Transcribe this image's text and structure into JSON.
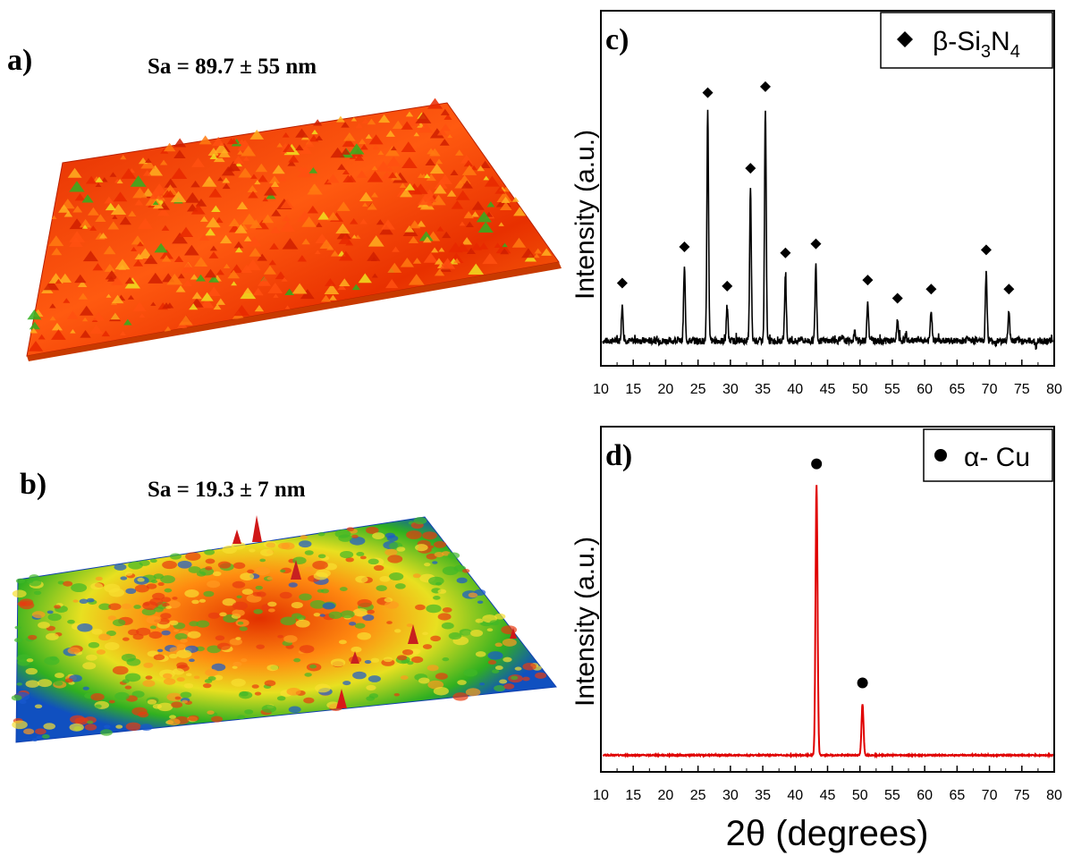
{
  "panels": {
    "a": {
      "label": "a)",
      "caption": "Sa = 89.7 ± 55 nm"
    },
    "b": {
      "label": "b)",
      "caption": "Sa = 19.3 ± 7 nm"
    }
  },
  "colors": {
    "xrd_c": "#000000",
    "xrd_d": "#e00000",
    "surface_high": "#d81a00",
    "surface_mid": "#f5e600",
    "surface_low": "#1aa000",
    "surface_min": "#0030c8"
  },
  "chart_data": [
    {
      "type": "line",
      "panel_label": "c)",
      "legend": {
        "marker": "diamond",
        "label_prefix": "β-Si",
        "sub1": "3",
        "label_mid": "N",
        "sub2": "4",
        "placement": "top-right"
      },
      "ylabel": "Intensity (a.u.)",
      "xlabel": "",
      "xlim": [
        10,
        80
      ],
      "ylim": [
        0,
        100
      ],
      "xticks": [
        "10",
        "15",
        "20",
        "25",
        "30",
        "35",
        "40",
        "45",
        "50",
        "55",
        "60",
        "65",
        "70",
        "75",
        "80"
      ],
      "baseline": 5,
      "peaks": [
        {
          "x": 13.3,
          "y": 17,
          "marked": true
        },
        {
          "x": 22.9,
          "y": 29,
          "marked": true
        },
        {
          "x": 26.5,
          "y": 80,
          "marked": true
        },
        {
          "x": 29.5,
          "y": 16,
          "marked": true
        },
        {
          "x": 33.1,
          "y": 55,
          "marked": true
        },
        {
          "x": 35.4,
          "y": 82,
          "marked": true
        },
        {
          "x": 38.5,
          "y": 27,
          "marked": true
        },
        {
          "x": 41.0,
          "y": 6,
          "marked": false
        },
        {
          "x": 43.2,
          "y": 30,
          "marked": true
        },
        {
          "x": 47.3,
          "y": 6,
          "marked": false
        },
        {
          "x": 49.2,
          "y": 8,
          "marked": false
        },
        {
          "x": 51.2,
          "y": 18,
          "marked": true
        },
        {
          "x": 53.0,
          "y": 5,
          "marked": false
        },
        {
          "x": 55.8,
          "y": 12,
          "marked": true
        },
        {
          "x": 57.1,
          "y": 7,
          "marked": false
        },
        {
          "x": 59.2,
          "y": 5,
          "marked": false
        },
        {
          "x": 61.0,
          "y": 15,
          "marked": true
        },
        {
          "x": 64.4,
          "y": 5,
          "marked": false
        },
        {
          "x": 66.6,
          "y": 7,
          "marked": false
        },
        {
          "x": 67.2,
          "y": 5,
          "marked": false
        },
        {
          "x": 69.5,
          "y": 28,
          "marked": true
        },
        {
          "x": 71.0,
          "y": 4,
          "marked": false
        },
        {
          "x": 73.0,
          "y": 15,
          "marked": true
        },
        {
          "x": 74.4,
          "y": 5,
          "marked": false
        },
        {
          "x": 77.2,
          "y": 3,
          "marked": false
        }
      ],
      "grid": false
    },
    {
      "type": "line",
      "panel_label": "d)",
      "legend": {
        "marker": "circle",
        "label": "α- Cu",
        "placement": "top-right"
      },
      "ylabel": "Intensity (a.u.)",
      "xlabel": "2θ (degrees)",
      "xlim": [
        10,
        80
      ],
      "ylim": [
        0,
        100
      ],
      "xticks": [
        "10",
        "15",
        "20",
        "25",
        "30",
        "35",
        "40",
        "45",
        "50",
        "55",
        "60",
        "65",
        "70",
        "75",
        "80"
      ],
      "baseline": 3,
      "peaks": [
        {
          "x": 43.3,
          "y": 88,
          "marked": true
        },
        {
          "x": 50.4,
          "y": 19,
          "marked": true
        }
      ],
      "grid": false
    }
  ]
}
